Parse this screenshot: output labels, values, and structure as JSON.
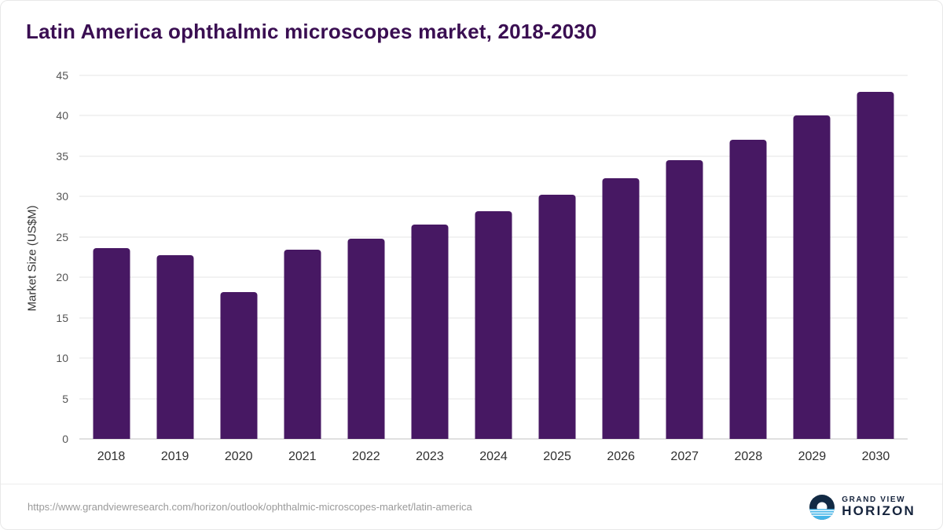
{
  "chart_data": {
    "type": "bar",
    "title": "Latin America ophthalmic microscopes market, 2018-2030",
    "ylabel": "Market Size (US$M)",
    "xlabel": "",
    "categories": [
      "2018",
      "2019",
      "2020",
      "2021",
      "2022",
      "2023",
      "2024",
      "2025",
      "2026",
      "2027",
      "2028",
      "2029",
      "2030"
    ],
    "values": [
      23.6,
      22.7,
      18.2,
      23.4,
      24.8,
      26.5,
      28.2,
      30.2,
      32.3,
      34.5,
      37.0,
      40.0,
      43.0
    ],
    "ylim": [
      0,
      45
    ],
    "y_ticks": [
      0,
      5,
      10,
      15,
      20,
      25,
      30,
      35,
      40,
      45
    ],
    "grid": "horizontal",
    "legend": "none"
  },
  "colors": {
    "bar": "#471863",
    "title": "#3a0e52",
    "grid": "#e4e4e4",
    "baseline": "#c0c0c0",
    "logo_navy": "#122a44",
    "logo_blue": "#45b5e8"
  },
  "footer": {
    "source_url": "https://www.grandviewresearch.com/horizon/outlook/ophthalmic-microscopes-market/latin-america",
    "logo_top": "GRAND VIEW",
    "logo_bottom": "HORIZON"
  }
}
